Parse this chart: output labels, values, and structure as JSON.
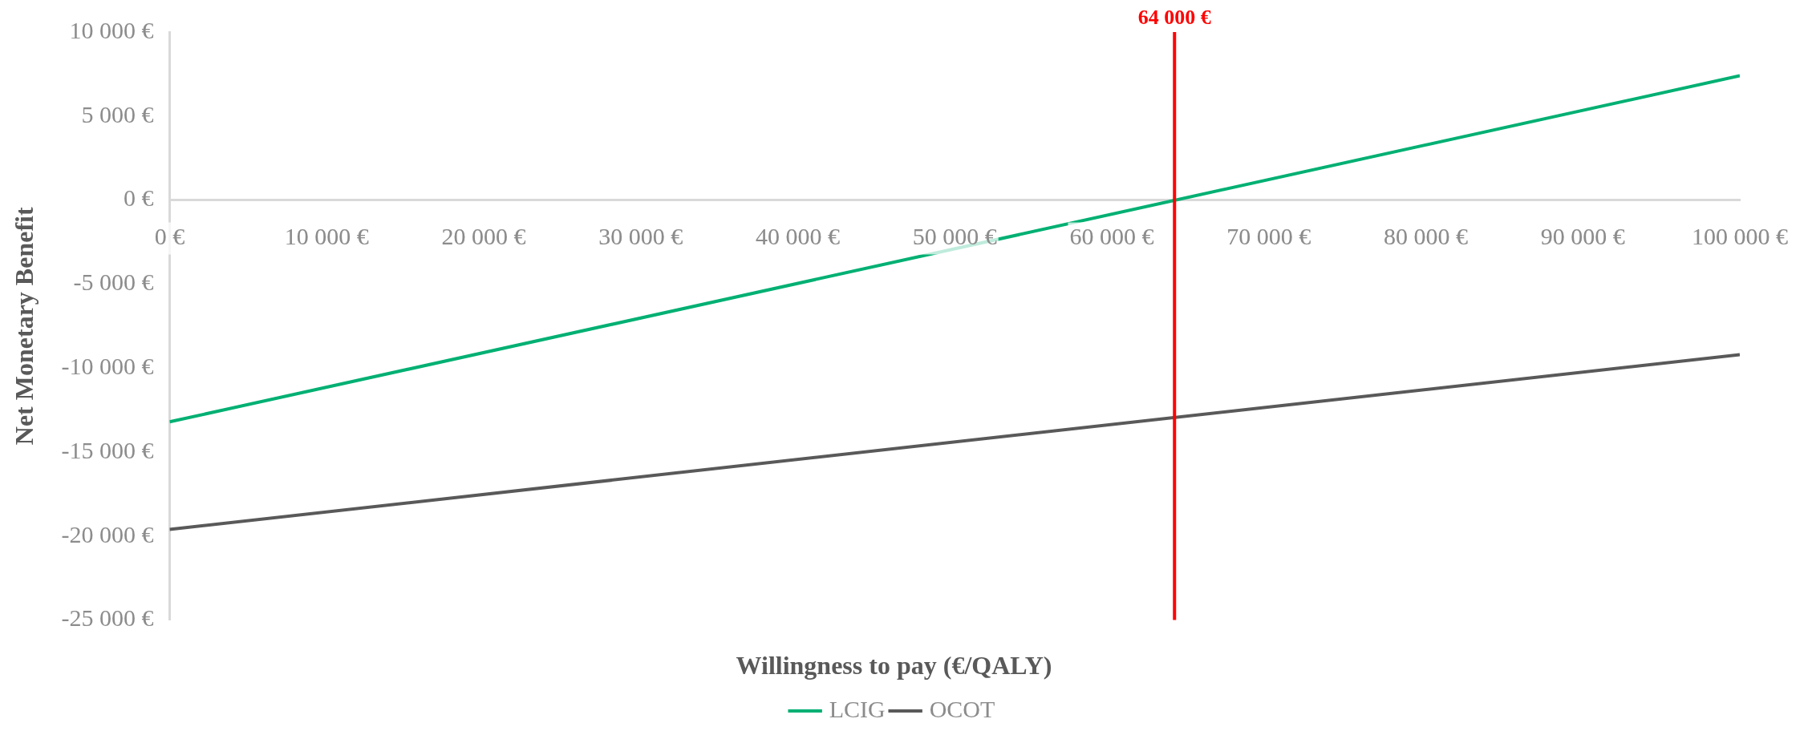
{
  "chart_data": {
    "type": "line",
    "xlabel": "Willingness to pay (€/QALY)",
    "ylabel": "Net Monetary Benefit",
    "x": [
      0,
      100000
    ],
    "series": [
      {
        "name": "LCIG",
        "color": "#00b073",
        "values": [
          -13200,
          7400
        ]
      },
      {
        "name": "OCOT",
        "color": "#595959",
        "values": [
          -19600,
          -9200
        ]
      }
    ],
    "xlim": [
      0,
      100000
    ],
    "xticks": [
      {
        "value": 0,
        "label": "0 €"
      },
      {
        "value": 10000,
        "label": "10 000 €"
      },
      {
        "value": 20000,
        "label": "20 000 €"
      },
      {
        "value": 30000,
        "label": "30 000 €"
      },
      {
        "value": 40000,
        "label": "40 000 €"
      },
      {
        "value": 50000,
        "label": "50 000 €"
      },
      {
        "value": 60000,
        "label": "60 000 €"
      },
      {
        "value": 70000,
        "label": "70 000 €"
      },
      {
        "value": 80000,
        "label": "80 000 €"
      },
      {
        "value": 90000,
        "label": "90 000 €"
      },
      {
        "value": 100000,
        "label": "100 000 €"
      }
    ],
    "ylim": [
      -25000,
      10000
    ],
    "yticks": [
      {
        "value": -25000,
        "label": "-25 000 €"
      },
      {
        "value": -20000,
        "label": "-20 000 €"
      },
      {
        "value": -15000,
        "label": "-15 000 €"
      },
      {
        "value": -10000,
        "label": "-10 000 €"
      },
      {
        "value": -5000,
        "label": "-5 000 €"
      },
      {
        "value": 0,
        "label": "0 €"
      },
      {
        "value": 5000,
        "label": "5 000 €"
      },
      {
        "value": 10000,
        "label": "10 000 €"
      }
    ],
    "ref_lines": [
      {
        "axis": "x",
        "value": 64000,
        "label": "64 000 €",
        "color": "#ff0000"
      }
    ],
    "grid": false,
    "legend": "bottom",
    "marker": "none",
    "line_style": "solid"
  }
}
